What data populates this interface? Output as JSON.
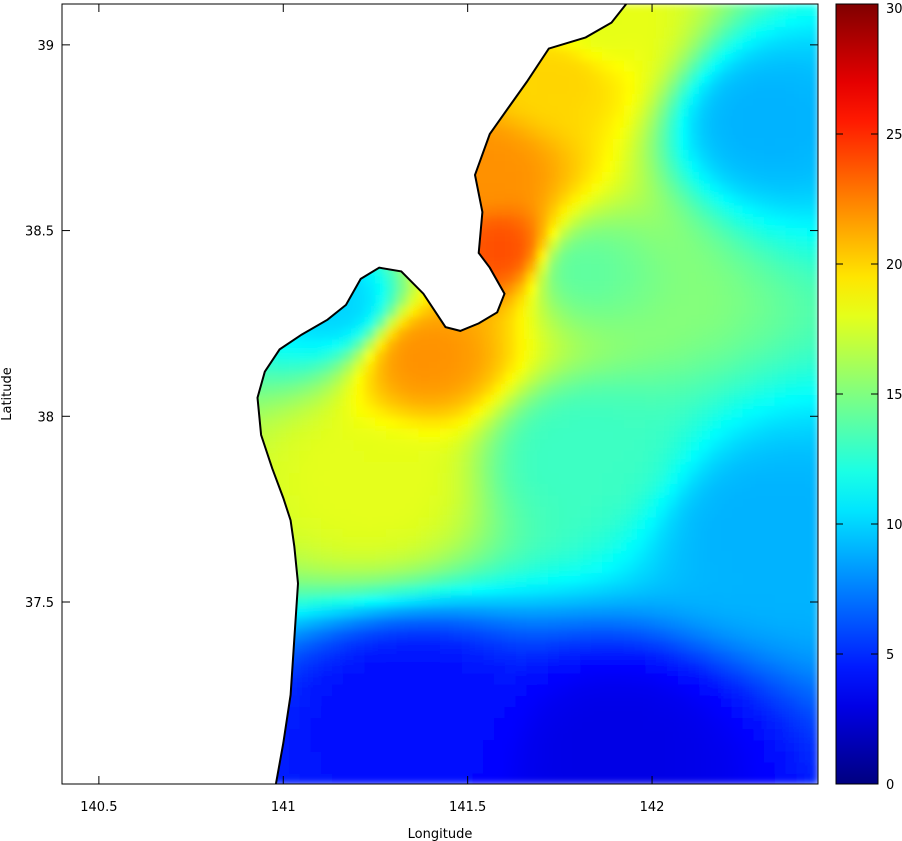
{
  "chart_data": {
    "type": "heatmap",
    "title": "",
    "xlabel": "Longitude",
    "ylabel": "Latitude",
    "xlim": [
      140.4,
      142.45
    ],
    "ylim": [
      37.01,
      39.11
    ],
    "x_ticks": [
      {
        "value": 140.5,
        "label": "140.5"
      },
      {
        "value": 141,
        "label": "141"
      },
      {
        "value": 141.5,
        "label": "141.5"
      },
      {
        "value": 142,
        "label": "142"
      }
    ],
    "y_ticks": [
      {
        "value": 37.5,
        "label": "37.5"
      },
      {
        "value": 38,
        "label": "38"
      },
      {
        "value": 38.5,
        "label": "38.5"
      },
      {
        "value": 39,
        "label": "39"
      }
    ],
    "colorbar": {
      "min": 0,
      "max": 30,
      "ticks": [
        {
          "value": 0,
          "label": "0"
        },
        {
          "value": 5,
          "label": "5"
        },
        {
          "value": 10,
          "label": "10"
        },
        {
          "value": 15,
          "label": "15"
        },
        {
          "value": 20,
          "label": "20"
        },
        {
          "value": 25,
          "label": "25"
        },
        {
          "value": 30,
          "label": "30"
        }
      ],
      "colormap": "jet"
    },
    "land_color": "#ffffff",
    "coastline_color": "#000000",
    "field_hotspots": [
      {
        "lon": 141.38,
        "lat": 38.17,
        "value": 22
      },
      {
        "lon": 141.25,
        "lat": 37.82,
        "value": 18
      },
      {
        "lon": 141.6,
        "lat": 38.45,
        "value": 24
      },
      {
        "lon": 141.55,
        "lat": 38.65,
        "value": 22
      },
      {
        "lon": 141.75,
        "lat": 38.92,
        "value": 20
      },
      {
        "lon": 141.85,
        "lat": 39.05,
        "value": 18
      },
      {
        "lon": 141.15,
        "lat": 38.3,
        "value": 10
      },
      {
        "lon": 141.35,
        "lat": 37.2,
        "value": 4
      },
      {
        "lon": 141.9,
        "lat": 37.1,
        "value": 3
      },
      {
        "lon": 142.3,
        "lat": 38.8,
        "value": 9
      },
      {
        "lon": 142.3,
        "lat": 37.7,
        "value": 9
      },
      {
        "lon": 141.8,
        "lat": 38.4,
        "value": 14
      },
      {
        "lon": 141.8,
        "lat": 37.9,
        "value": 13
      }
    ],
    "coastline": [
      [
        140.98,
        37.01
      ],
      [
        141.0,
        37.12
      ],
      [
        141.02,
        37.25
      ],
      [
        141.03,
        37.4
      ],
      [
        141.04,
        37.55
      ],
      [
        141.03,
        37.65
      ],
      [
        141.02,
        37.72
      ],
      [
        141.0,
        37.78
      ],
      [
        140.97,
        37.86
      ],
      [
        140.94,
        37.95
      ],
      [
        140.93,
        38.05
      ],
      [
        140.95,
        38.12
      ],
      [
        140.99,
        38.18
      ],
      [
        141.05,
        38.22
      ],
      [
        141.12,
        38.26
      ],
      [
        141.17,
        38.3
      ],
      [
        141.21,
        38.37
      ],
      [
        141.26,
        38.4
      ],
      [
        141.32,
        38.39
      ],
      [
        141.38,
        38.33
      ],
      [
        141.44,
        38.24
      ],
      [
        141.48,
        38.23
      ],
      [
        141.53,
        38.25
      ],
      [
        141.58,
        38.28
      ],
      [
        141.6,
        38.33
      ],
      [
        141.56,
        38.4
      ],
      [
        141.53,
        38.44
      ],
      [
        141.54,
        38.55
      ],
      [
        141.52,
        38.65
      ],
      [
        141.56,
        38.76
      ],
      [
        141.61,
        38.83
      ],
      [
        141.66,
        38.9
      ],
      [
        141.72,
        38.99
      ],
      [
        141.82,
        39.02
      ],
      [
        141.89,
        39.06
      ],
      [
        141.93,
        39.11
      ]
    ]
  }
}
